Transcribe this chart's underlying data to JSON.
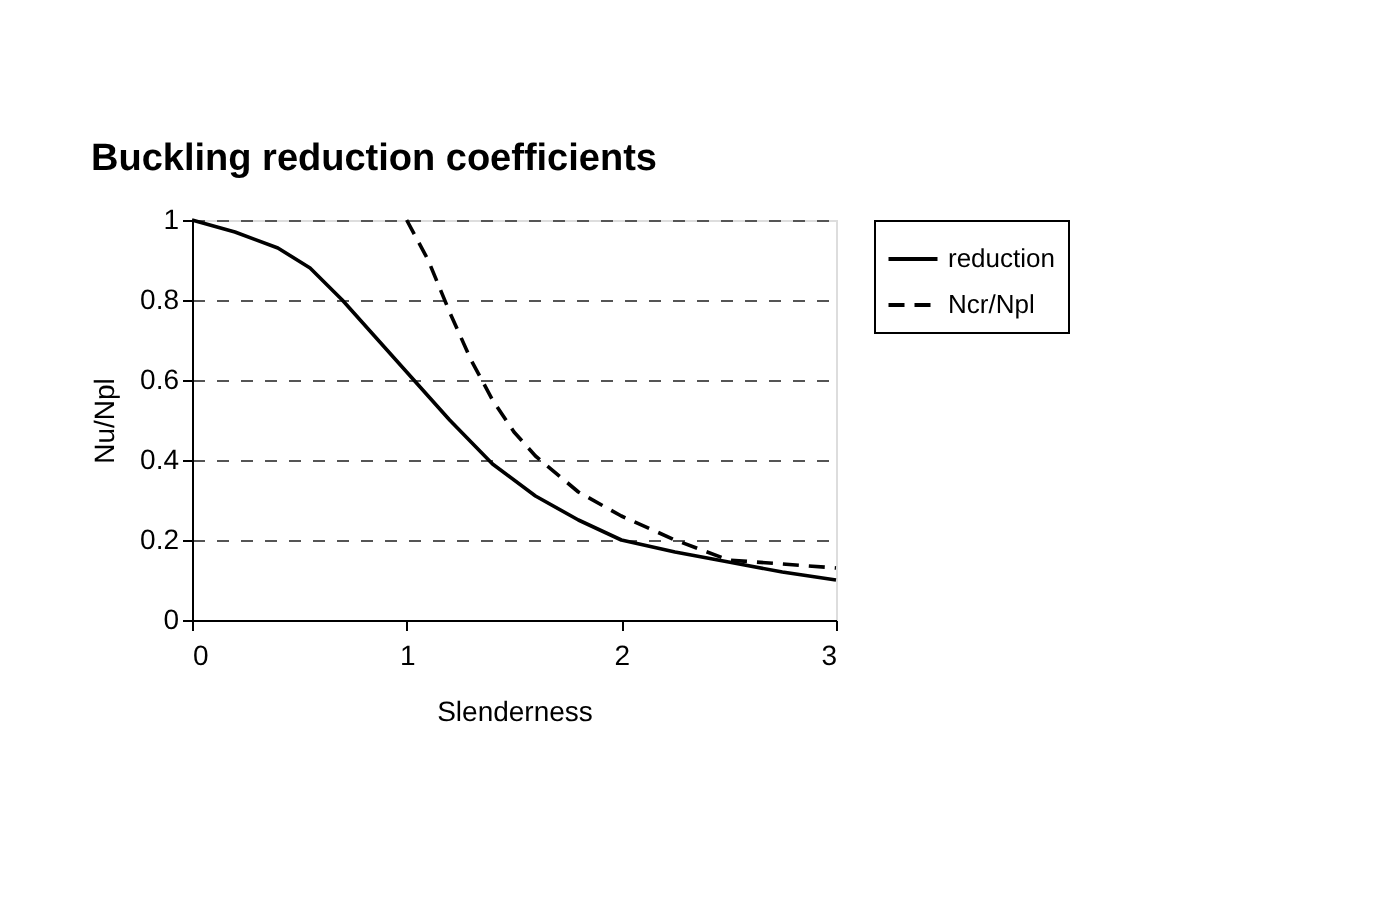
{
  "chart_data": {
    "type": "line",
    "title": "Buckling reduction coefficients",
    "xlabel": "Slenderness",
    "ylabel": "Nu/Npl",
    "xlim": [
      0,
      3
    ],
    "xticks": [
      0,
      1,
      2,
      3
    ],
    "ylim": [
      0,
      1
    ],
    "yticks": [
      0,
      0.2,
      0.4,
      0.6,
      0.8,
      1
    ],
    "grid": "y",
    "legend": "right",
    "series": [
      {
        "name": "reduction",
        "color": "#000000",
        "line_style": "solid",
        "x": [
          0,
          0.2,
          0.4,
          0.55,
          0.7,
          0.85,
          1,
          1.2,
          1.4,
          1.6,
          1.8,
          2,
          2.25,
          2.5,
          2.75,
          3
        ],
        "values": [
          1,
          0.97,
          0.93,
          0.88,
          0.8,
          0.71,
          0.62,
          0.5,
          0.39,
          0.31,
          0.25,
          0.2,
          0.17,
          0.145,
          0.12,
          0.1
        ]
      },
      {
        "name": "Ncr/Npl",
        "color": "#000000",
        "line_style": "dashed",
        "x": [
          1,
          1.1,
          1.2,
          1.3,
          1.4,
          1.5,
          1.6,
          1.8,
          2,
          2.25,
          2.5,
          2.75,
          3
        ],
        "values": [
          1,
          0.9,
          0.77,
          0.65,
          0.55,
          0.47,
          0.41,
          0.32,
          0.26,
          0.2,
          0.15,
          0.14,
          0.13
        ]
      }
    ]
  }
}
